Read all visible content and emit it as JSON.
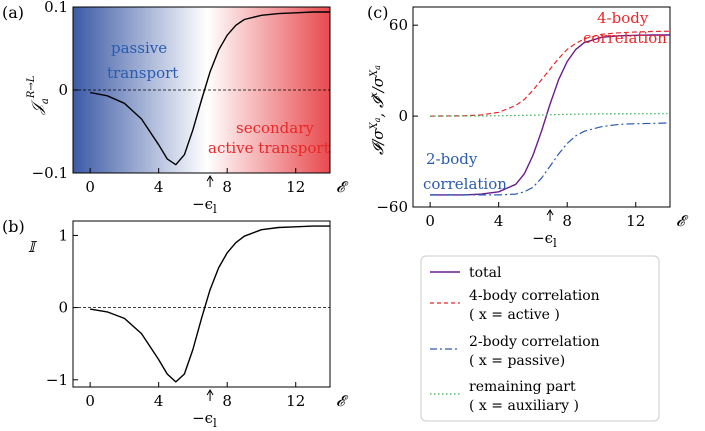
{
  "chart_data": [
    {
      "panel": "(a)",
      "type": "line",
      "ylabel": "𝒥_a^{R→L}",
      "xlabel": "𝓔",
      "xlim": [
        -1,
        14
      ],
      "ylim": [
        -0.1,
        0.1
      ],
      "xticks": [
        "0",
        "4",
        "8",
        "12"
      ],
      "xtick_values": [
        0,
        4,
        8,
        12
      ],
      "yticks": [
        "0.1",
        "0",
        "−0.1"
      ],
      "ytick_values": [
        0.1,
        0,
        -0.1
      ],
      "marker_label": "−ϵ_l",
      "marker_x": 7,
      "background": "blue-to-white-to-red gradient, white at x≈7",
      "annotations": [
        "passive",
        "transport",
        "secondary",
        "active transport"
      ],
      "zero_line": "dashed",
      "series": [
        {
          "color": "#000000",
          "x": [
            0,
            1,
            2,
            3,
            4,
            4.5,
            5,
            5.5,
            6,
            6.5,
            7,
            7.5,
            8,
            8.5,
            9,
            10,
            11,
            12,
            13,
            14
          ],
          "y": [
            -0.003,
            -0.007,
            -0.016,
            -0.035,
            -0.066,
            -0.083,
            -0.09,
            -0.078,
            -0.048,
            -0.012,
            0.022,
            0.048,
            0.066,
            0.078,
            0.085,
            0.09,
            0.092,
            0.093,
            0.094,
            0.094
          ]
        }
      ]
    },
    {
      "panel": "(b)",
      "type": "line",
      "ylabel": "𝕀",
      "xlabel": "𝓔",
      "xlim": [
        -1,
        14
      ],
      "ylim": [
        -1.1,
        1.2
      ],
      "xticks": [
        "0",
        "4",
        "8",
        "12"
      ],
      "xtick_values": [
        0,
        4,
        8,
        12
      ],
      "yticks": [
        "1",
        "0",
        "−1"
      ],
      "ytick_values": [
        1,
        0,
        -1
      ],
      "marker_label": "−ϵ_l",
      "marker_x": 7,
      "zero_line": "dashed",
      "series": [
        {
          "color": "#000000",
          "x": [
            0,
            1,
            2,
            3,
            4,
            4.5,
            5,
            5.5,
            6,
            6.5,
            7,
            7.5,
            8,
            8.5,
            9,
            10,
            11,
            12,
            13,
            14
          ],
          "y": [
            -0.02,
            -0.06,
            -0.15,
            -0.36,
            -0.72,
            -0.92,
            -1.03,
            -0.92,
            -0.58,
            -0.15,
            0.25,
            0.55,
            0.76,
            0.9,
            0.99,
            1.08,
            1.11,
            1.12,
            1.13,
            1.13
          ]
        }
      ]
    },
    {
      "panel": "(c)",
      "type": "line",
      "ylabel": "𝓘/σ^{X_a}, 𝓘^x/σ^{X_a}",
      "xlabel": "𝓔",
      "xlim": [
        -1,
        14
      ],
      "ylim": [
        -60,
        72
      ],
      "xticks": [
        "0",
        "4",
        "8",
        "12"
      ],
      "xtick_values": [
        0,
        4,
        8,
        12
      ],
      "yticks": [
        "60",
        "0",
        "−60"
      ],
      "ytick_values": [
        60,
        0,
        -60
      ],
      "marker_label": "−ϵ_l",
      "marker_x": 7,
      "annotations_red": [
        "4-body",
        "correlation"
      ],
      "annotations_blue": [
        "2-body",
        "correlation"
      ],
      "legend_position": "bottom-right",
      "series": [
        {
          "name": "total",
          "color": "#6a1b8a",
          "dash": "solid",
          "x": [
            0,
            2,
            3,
            4,
            5,
            5.5,
            6,
            6.5,
            7,
            7.5,
            8,
            8.5,
            9,
            10,
            11,
            12,
            13,
            14
          ],
          "y": [
            -52,
            -52,
            -51.5,
            -50,
            -45,
            -38,
            -26,
            -10,
            8,
            24,
            36,
            44,
            48.5,
            52,
            53,
            53.3,
            53.5,
            53.5
          ]
        },
        {
          "name": "4-body correlation",
          "sublabel": "(x = active)",
          "color": "#e8282a",
          "dash": "dashed",
          "x": [
            0,
            2,
            3,
            4,
            5,
            5.5,
            6,
            6.5,
            7,
            7.5,
            8,
            8.5,
            9,
            10,
            11,
            12,
            13,
            14
          ],
          "y": [
            0,
            0.2,
            0.8,
            2.5,
            7,
            11,
            17,
            24,
            31,
            38,
            44,
            48,
            51,
            54,
            55,
            55.5,
            55.8,
            56
          ]
        },
        {
          "name": "2-body correlation",
          "sublabel": "(x = passive)",
          "color": "#2a5bb0",
          "dash": "dashdot",
          "x": [
            0,
            2,
            3,
            4,
            5,
            5.5,
            6,
            6.5,
            7,
            7.5,
            8,
            8.5,
            9,
            10,
            11,
            12,
            13,
            14
          ],
          "y": [
            -52,
            -52,
            -52,
            -52,
            -51.5,
            -50,
            -47,
            -41,
            -33,
            -25,
            -18,
            -13,
            -10,
            -7,
            -5.5,
            -5,
            -4.8,
            -4.5
          ]
        },
        {
          "name": "remaining part",
          "sublabel": "(x = auxiliary)",
          "color": "#3aa857",
          "dash": "dotted",
          "x": [
            0,
            4,
            6,
            8,
            10,
            12,
            14
          ],
          "y": [
            0,
            0.2,
            0.6,
            1.2,
            1.5,
            1.6,
            1.6
          ]
        }
      ]
    }
  ],
  "panels": {
    "a": {
      "label": "(a)"
    },
    "b": {
      "label": "(b)"
    },
    "c": {
      "label": "(c)"
    }
  },
  "legend": {
    "entries": [
      {
        "name": "total",
        "sublabel": ""
      },
      {
        "name": "4-body correlation",
        "sublabel": "( x = active )"
      },
      {
        "name": "2-body correlation",
        "sublabel": "( x = passive)"
      },
      {
        "name": "remaining part",
        "sublabel": "( x = auxiliary )"
      }
    ]
  }
}
